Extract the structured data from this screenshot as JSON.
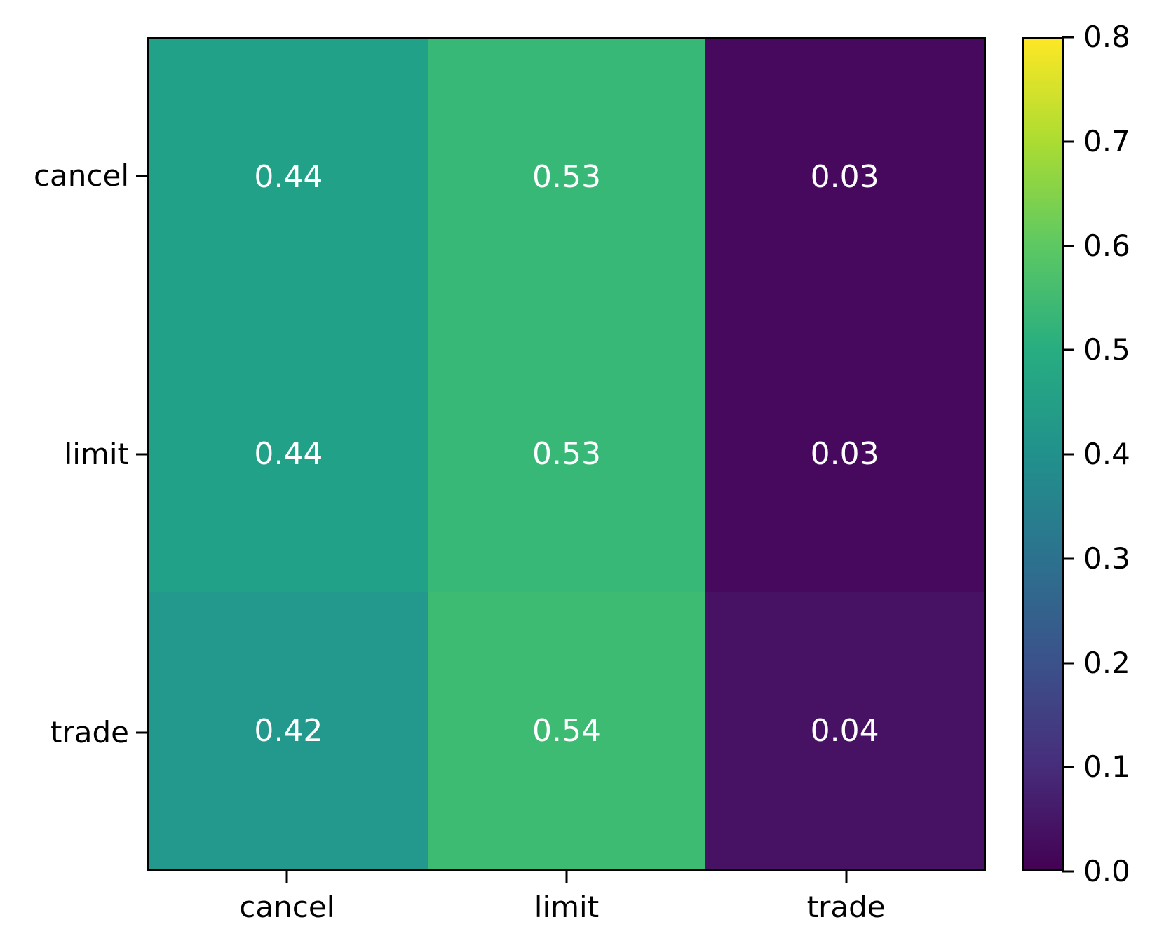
{
  "chart_data": {
    "type": "heatmap",
    "title": "",
    "xlabel": "",
    "ylabel": "",
    "x_categories": [
      "cancel",
      "limit",
      "trade"
    ],
    "y_categories": [
      "cancel",
      "limit",
      "trade"
    ],
    "values": [
      [
        0.44,
        0.53,
        0.03
      ],
      [
        0.44,
        0.53,
        0.03
      ],
      [
        0.42,
        0.54,
        0.04
      ]
    ],
    "cells": [
      {
        "row": "cancel",
        "col": "cancel",
        "label": "0.44",
        "color": "#21a187"
      },
      {
        "row": "cancel",
        "col": "limit",
        "label": "0.53",
        "color": "#38b877"
      },
      {
        "row": "cancel",
        "col": "trade",
        "label": "0.03",
        "color": "#46095d"
      },
      {
        "row": "limit",
        "col": "cancel",
        "label": "0.44",
        "color": "#21a187"
      },
      {
        "row": "limit",
        "col": "limit",
        "label": "0.53",
        "color": "#38b877"
      },
      {
        "row": "limit",
        "col": "trade",
        "label": "0.03",
        "color": "#46095d"
      },
      {
        "row": "trade",
        "col": "cancel",
        "label": "0.42",
        "color": "#22998c"
      },
      {
        "row": "trade",
        "col": "limit",
        "label": "0.54",
        "color": "#3dbb73"
      },
      {
        "row": "trade",
        "col": "trade",
        "label": "0.04",
        "color": "#471264"
      }
    ],
    "annotation_text_color": "#ffffff",
    "axis_color": "#000000",
    "grid": false,
    "colormap": {
      "name": "viridis",
      "vmin": 0.0,
      "vmax": 0.8,
      "gradient_stops": [
        "#440154",
        "#472d7b",
        "#3b528b",
        "#2c728e",
        "#21918c",
        "#27ad81",
        "#5cc863",
        "#aadc32",
        "#fde725"
      ]
    },
    "colorbar": {
      "position": "right",
      "ticks": [
        "0.0",
        "0.1",
        "0.2",
        "0.3",
        "0.4",
        "0.5",
        "0.6",
        "0.7",
        "0.8"
      ]
    }
  }
}
